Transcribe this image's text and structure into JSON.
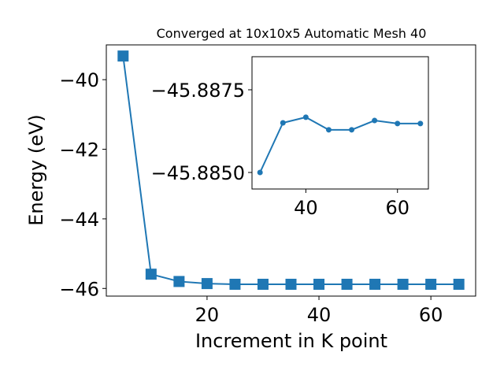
{
  "chart_data": [
    {
      "type": "line",
      "title": "Converged at 10x10x5 Automatic Mesh 40",
      "x_label": "Increment in K point",
      "y_label": "Energy (eV)",
      "x": [
        5,
        10,
        15,
        20,
        25,
        30,
        35,
        40,
        45,
        50,
        55,
        60,
        65
      ],
      "series": [
        {
          "color": "#1f77b4",
          "marker": "square",
          "values": [
            -39.32,
            -45.59,
            -45.8,
            -45.86,
            -45.88,
            -45.88,
            -45.88,
            -45.88,
            -45.88,
            -45.88,
            -45.88,
            -45.88,
            -45.88
          ]
        }
      ],
      "xlim": [
        2,
        68
      ],
      "xticks": [
        20,
        40,
        60
      ],
      "ylim": [
        -46.22,
        -39.0
      ],
      "yticks": [
        {
          "value": -46,
          "label": "−46"
        },
        {
          "value": -44,
          "label": "−44"
        },
        {
          "value": -42,
          "label": "−42"
        },
        {
          "value": -40,
          "label": "−40"
        }
      ]
    },
    {
      "type": "line",
      "x": [
        30,
        35,
        40,
        45,
        50,
        55,
        60,
        65
      ],
      "series": [
        {
          "color": "#1f77b4",
          "marker": "circle",
          "values": [
            -45.885,
            -45.8865,
            -45.88667,
            -45.88629,
            -45.88629,
            -45.88657,
            -45.88648,
            -45.88648
          ]
        }
      ],
      "xlim": [
        28.25,
        66.75
      ],
      "xticks": [
        40,
        60
      ],
      "ylim": [
        -45.8845,
        -45.8885
      ],
      "yticks": [
        {
          "value": -45.885,
          "label": "−45.8850"
        },
        {
          "value": -45.8875,
          "label": "−45.8875"
        }
      ]
    }
  ]
}
